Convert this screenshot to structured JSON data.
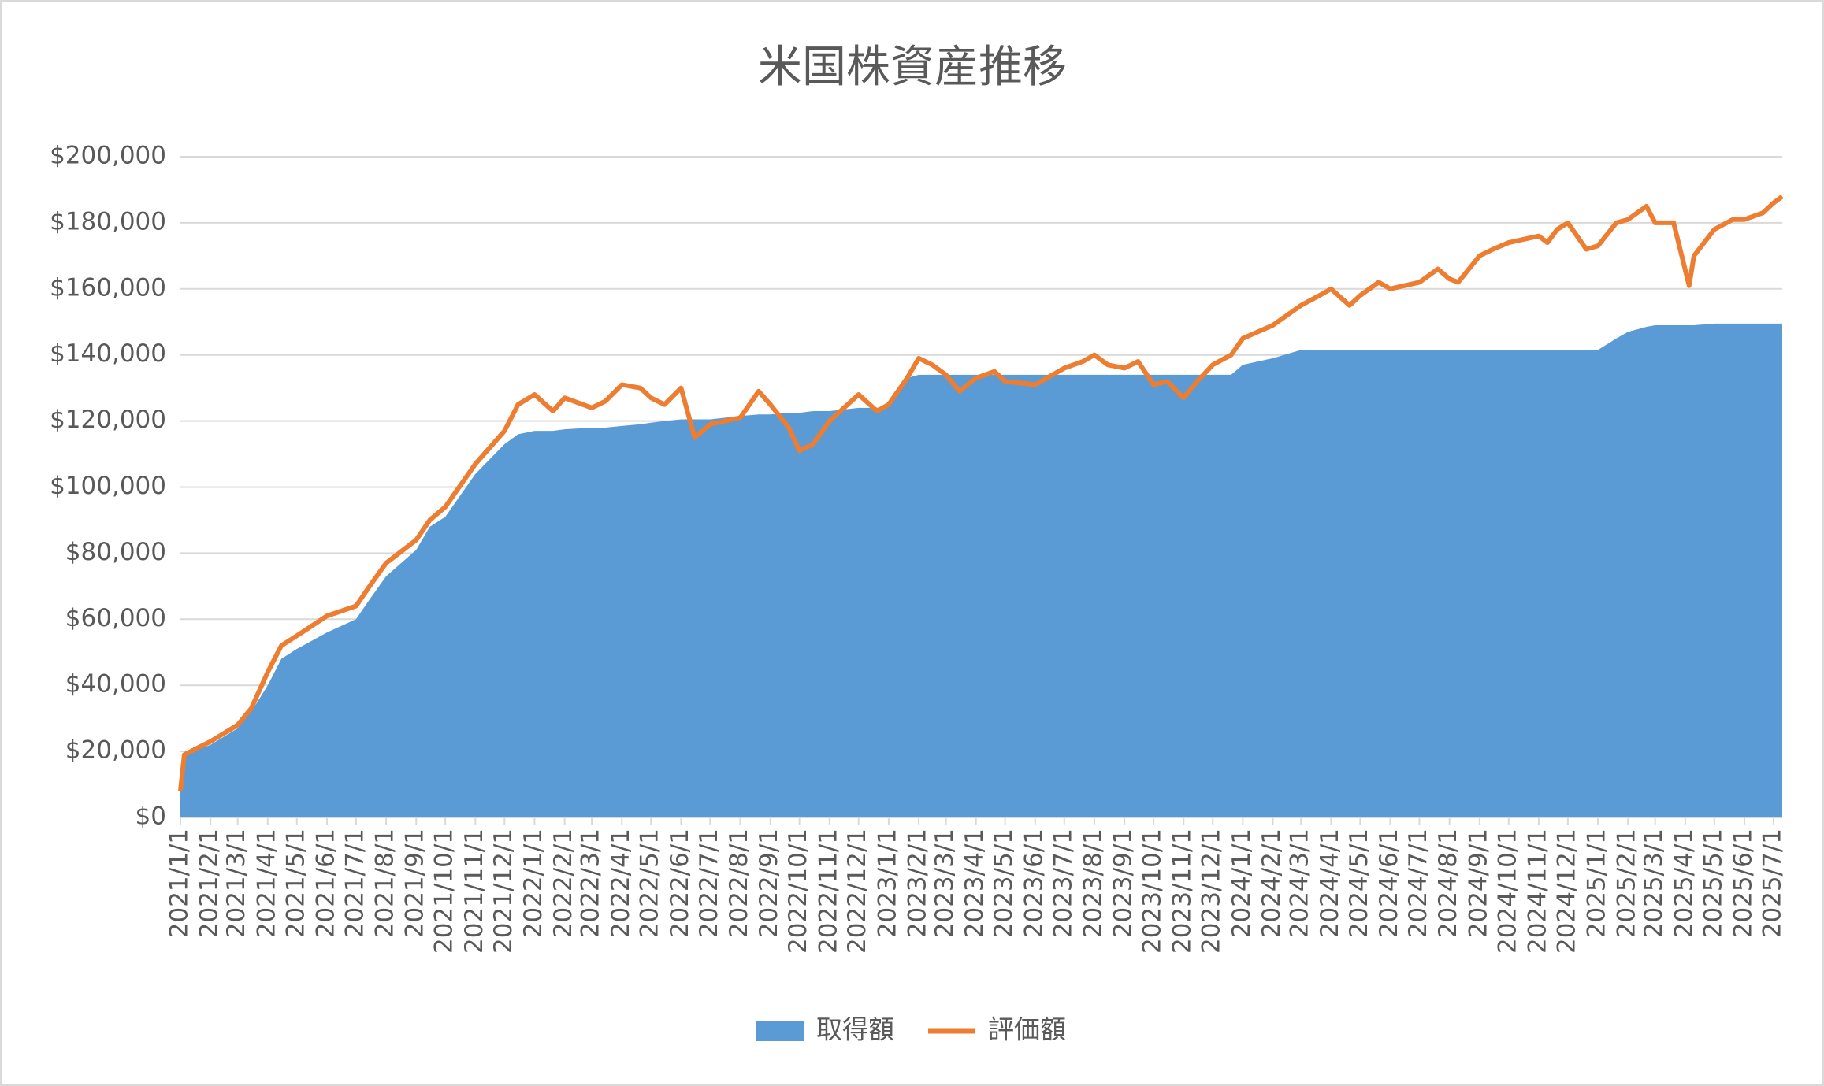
{
  "chart_data": {
    "type": "area-line",
    "title": "米国株資産推移",
    "x": [
      "2021/1/1",
      "2021/1/5",
      "2021/2/1",
      "2021/3/1",
      "2021/3/15",
      "2021/4/1",
      "2021/4/15",
      "2021/5/1",
      "2021/6/1",
      "2021/7/1",
      "2021/7/15",
      "2021/8/1",
      "2021/9/1",
      "2021/9/15",
      "2021/10/1",
      "2021/11/1",
      "2021/12/1",
      "2021/12/15",
      "2022/1/1",
      "2022/1/20",
      "2022/2/1",
      "2022/3/1",
      "2022/3/15",
      "2022/4/1",
      "2022/4/20",
      "2022/5/1",
      "2022/5/15",
      "2022/6/1",
      "2022/6/15",
      "2022/7/1",
      "2022/8/1",
      "2022/8/20",
      "2022/9/1",
      "2022/9/20",
      "2022/10/1",
      "2022/10/15",
      "2022/11/1",
      "2022/12/1",
      "2022/12/20",
      "2023/1/1",
      "2023/1/20",
      "2023/2/1",
      "2023/2/15",
      "2023/3/1",
      "2023/3/15",
      "2023/4/1",
      "2023/4/20",
      "2023/5/1",
      "2023/6/1",
      "2023/7/1",
      "2023/7/20",
      "2023/8/1",
      "2023/8/15",
      "2023/9/1",
      "2023/9/15",
      "2023/10/1",
      "2023/10/15",
      "2023/11/1",
      "2023/11/15",
      "2023/12/1",
      "2023/12/20",
      "2024/1/1",
      "2024/2/1",
      "2024/3/1",
      "2024/3/20",
      "2024/4/1",
      "2024/4/20",
      "2024/5/1",
      "2024/5/20",
      "2024/6/1",
      "2024/7/1",
      "2024/7/20",
      "2024/8/1",
      "2024/8/10",
      "2024/9/1",
      "2024/9/15",
      "2024/10/1",
      "2024/11/1",
      "2024/11/10",
      "2024/11/20",
      "2024/12/1",
      "2024/12/20",
      "2025/1/1",
      "2025/1/20",
      "2025/2/1",
      "2025/2/20",
      "2025/3/1",
      "2025/3/20",
      "2025/4/5",
      "2025/4/10",
      "2025/5/1",
      "2025/5/20",
      "2025/6/1",
      "2025/6/20",
      "2025/7/1",
      "2025/7/10"
    ],
    "series": [
      {
        "name": "取得額",
        "color": "#5b9bd5",
        "kind": "area",
        "values": [
          8000,
          19000,
          22000,
          27000,
          32000,
          40000,
          48000,
          51000,
          56000,
          60000,
          66000,
          73000,
          81000,
          88000,
          91000,
          104000,
          113000,
          116000,
          117000,
          117000,
          117500,
          118000,
          118000,
          118500,
          119000,
          119500,
          120000,
          120500,
          120500,
          120500,
          121500,
          122000,
          122000,
          122500,
          122500,
          123000,
          123000,
          124000,
          124000,
          125000,
          133000,
          134000,
          134000,
          134000,
          134000,
          134000,
          134000,
          134000,
          134000,
          134000,
          134000,
          134000,
          134000,
          134000,
          134000,
          134000,
          134000,
          134000,
          134000,
          134000,
          134000,
          137000,
          139000,
          141500,
          141500,
          141500,
          141500,
          141500,
          141500,
          141500,
          141500,
          141500,
          141500,
          141500,
          141500,
          141500,
          141500,
          141500,
          141500,
          141500,
          141500,
          141500,
          141500,
          145000,
          147000,
          148500,
          149000,
          149000,
          149000,
          149000,
          149500,
          149500,
          149500,
          149500,
          149500,
          149500
        ]
      },
      {
        "name": "評価額",
        "color": "#ed7d31",
        "kind": "line",
        "values": [
          8000,
          19000,
          23000,
          28000,
          33000,
          44000,
          52000,
          55000,
          61000,
          64000,
          70000,
          77000,
          84000,
          90000,
          94000,
          107000,
          117000,
          125000,
          128000,
          123000,
          127000,
          124000,
          126000,
          131000,
          130000,
          127000,
          125000,
          130000,
          115000,
          119000,
          121000,
          129000,
          125000,
          118000,
          111000,
          113000,
          120000,
          128000,
          123000,
          125000,
          133000,
          139000,
          137000,
          134000,
          129000,
          133000,
          135000,
          132000,
          131000,
          136000,
          138000,
          140000,
          137000,
          136000,
          138000,
          131000,
          132000,
          127000,
          132000,
          137000,
          140000,
          145000,
          149000,
          155000,
          158000,
          160000,
          155000,
          158000,
          162000,
          160000,
          162000,
          166000,
          163000,
          162000,
          170000,
          172000,
          174000,
          176000,
          174000,
          178000,
          180000,
          172000,
          173000,
          180000,
          181000,
          185000,
          180000,
          180000,
          161000,
          170000,
          178000,
          181000,
          181000,
          183000,
          186000,
          188000
        ]
      }
    ],
    "xlim": [
      "2021/1/1",
      "2025/7/10"
    ],
    "xticks": [
      "2021/1/1",
      "2021/2/1",
      "2021/3/1",
      "2021/4/1",
      "2021/5/1",
      "2021/6/1",
      "2021/7/1",
      "2021/8/1",
      "2021/9/1",
      "2021/10/1",
      "2021/11/1",
      "2021/12/1",
      "2022/1/1",
      "2022/2/1",
      "2022/3/1",
      "2022/4/1",
      "2022/5/1",
      "2022/6/1",
      "2022/7/1",
      "2022/8/1",
      "2022/9/1",
      "2022/10/1",
      "2022/11/1",
      "2022/12/1",
      "2023/1/1",
      "2023/2/1",
      "2023/3/1",
      "2023/4/1",
      "2023/5/1",
      "2023/6/1",
      "2023/7/1",
      "2023/8/1",
      "2023/9/1",
      "2023/10/1",
      "2023/11/1",
      "2023/12/1",
      "2024/1/1",
      "2024/2/1",
      "2024/3/1",
      "2024/4/1",
      "2024/5/1",
      "2024/6/1",
      "2024/7/1",
      "2024/8/1",
      "2024/9/1",
      "2024/10/1",
      "2024/11/1",
      "2024/12/1",
      "2025/1/1",
      "2025/2/1",
      "2025/3/1",
      "2025/4/1",
      "2025/5/1",
      "2025/6/1",
      "2025/7/1"
    ],
    "ylim": [
      0,
      200000
    ],
    "yticks": [
      {
        "value": 0,
        "label": "$0"
      },
      {
        "value": 20000,
        "label": "$20,000"
      },
      {
        "value": 40000,
        "label": "$40,000"
      },
      {
        "value": 60000,
        "label": "$60,000"
      },
      {
        "value": 80000,
        "label": "$80,000"
      },
      {
        "value": 100000,
        "label": "$100,000"
      },
      {
        "value": 120000,
        "label": "$120,000"
      },
      {
        "value": 140000,
        "label": "$140,000"
      },
      {
        "value": 160000,
        "label": "$160,000"
      },
      {
        "value": 180000,
        "label": "$180,000"
      },
      {
        "value": 200000,
        "label": "$200,000"
      }
    ],
    "grid": true,
    "legend": "bottom"
  }
}
